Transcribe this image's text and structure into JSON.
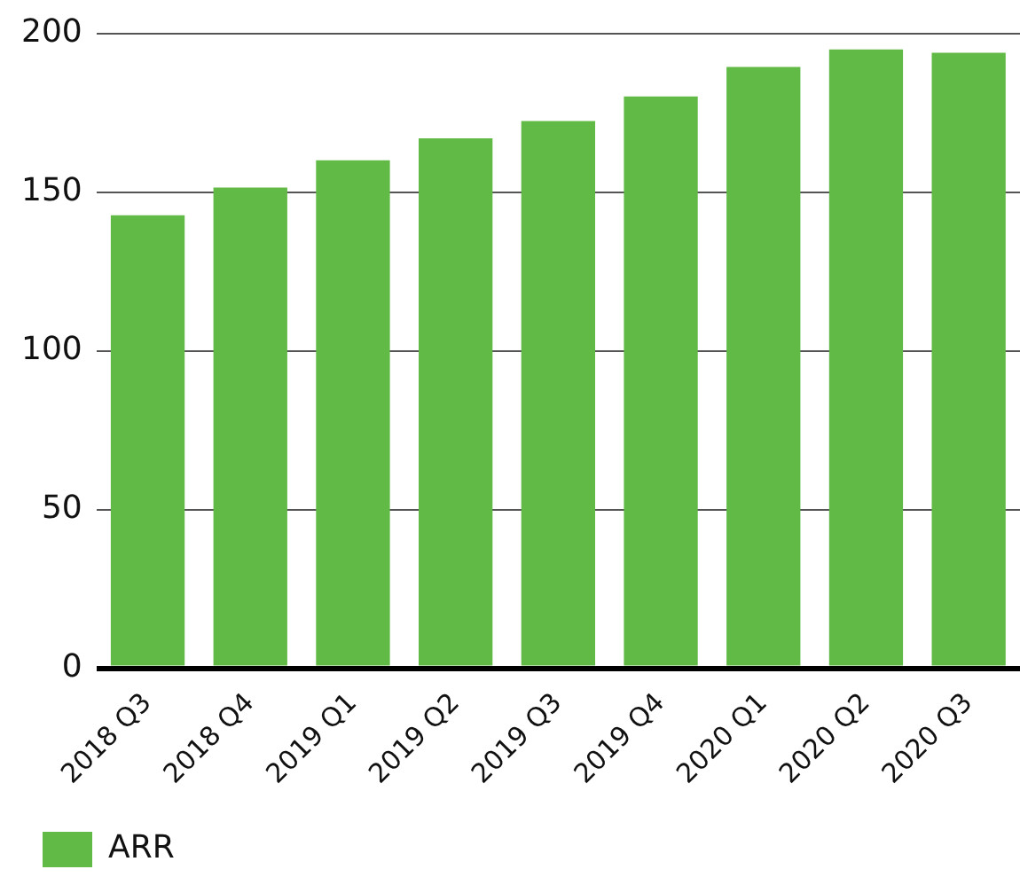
{
  "chart_data": {
    "type": "bar",
    "categories": [
      "2018 Q3",
      "2018 Q4",
      "2019 Q1",
      "2019 Q2",
      "2019 Q3",
      "2019 Q4",
      "2020 Q1",
      "2020 Q2",
      "2020 Q3"
    ],
    "series": [
      {
        "name": "ARR",
        "color": "#62ba46",
        "values": [
          142.7,
          151.4,
          160,
          166.9,
          172.4,
          180.1,
          189.4,
          194.9,
          193.9
        ]
      }
    ],
    "ylim": [
      0,
      200
    ],
    "yticks": [
      0,
      50,
      100,
      150,
      200
    ],
    "grid": "y",
    "legend": "bottom left"
  }
}
